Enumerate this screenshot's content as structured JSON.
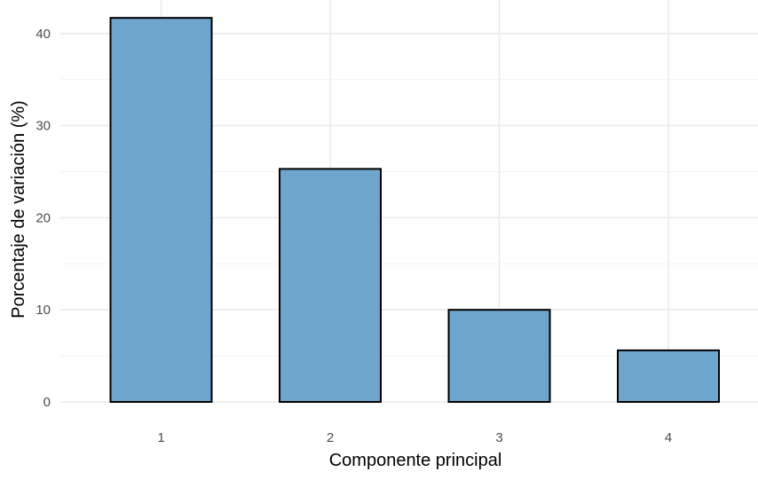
{
  "chart_data": {
    "type": "bar",
    "categories": [
      "1",
      "2",
      "3",
      "4"
    ],
    "values": [
      41.7,
      25.3,
      10.0,
      5.6
    ],
    "title": "",
    "xlabel": "Componente principal",
    "ylabel": "Porcentaje de variación (%)",
    "ylim": [
      0,
      43
    ],
    "yticks": [
      0,
      10,
      20,
      30,
      40
    ],
    "grid": true,
    "legend": "none",
    "colors": {
      "bar_fill": "#6ea5cc",
      "bar_outline": "#000000",
      "gridline": "#ebebeb",
      "tick_text": "#4d4d4d",
      "background": "#ffffff"
    }
  }
}
